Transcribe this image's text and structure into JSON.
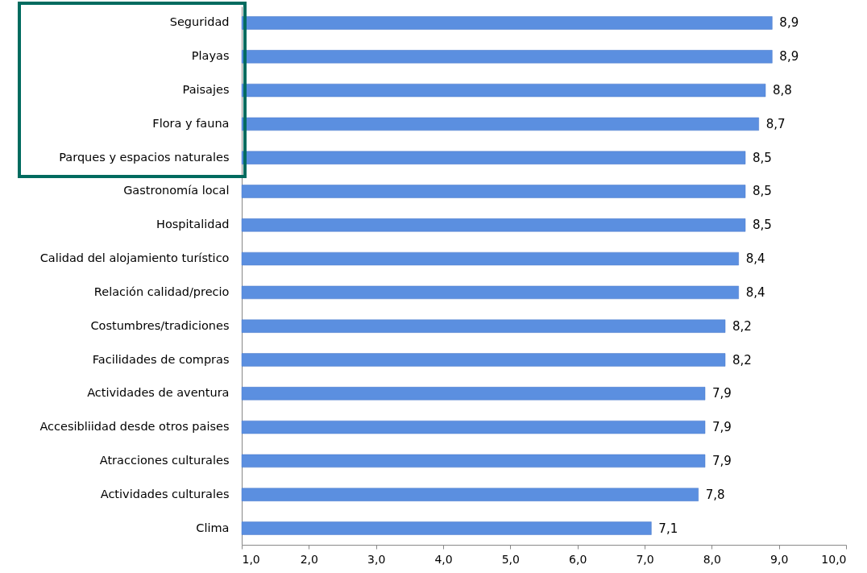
{
  "chart_data": {
    "type": "bar",
    "orientation": "horizontal",
    "categories": [
      "Seguridad",
      "Playas",
      "Paisajes",
      "Flora y fauna",
      "Parques y espacios naturales",
      "Gastronomía local",
      "Hospitalidad",
      "Calidad del alojamiento turístico",
      "Relación calidad/precio",
      "Costumbres/tradiciones",
      "Facilidades de compras",
      "Actividades de aventura",
      "Accesibliidad desde otros paises",
      "Atracciones culturales",
      "Actividades culturales",
      "Clima"
    ],
    "values": [
      8.9,
      8.9,
      8.8,
      8.7,
      8.5,
      8.5,
      8.5,
      8.4,
      8.4,
      8.2,
      8.2,
      7.9,
      7.9,
      7.9,
      7.8,
      7.1
    ],
    "value_labels": [
      "8,9",
      "8,9",
      "8,8",
      "8,7",
      "8,5",
      "8,5",
      "8,5",
      "8,4",
      "8,4",
      "8,2",
      "8,2",
      "7,9",
      "7,9",
      "7,9",
      "7,8",
      "7,1"
    ],
    "color": "#5b8fe0",
    "xlim": [
      1,
      10
    ],
    "xticks": [
      {
        "value": 1,
        "label": "1,0"
      },
      {
        "value": 2,
        "label": "2,0"
      },
      {
        "value": 3,
        "label": "3,0"
      },
      {
        "value": 4,
        "label": "4,0"
      },
      {
        "value": 5,
        "label": "5,0"
      },
      {
        "value": 6,
        "label": "6,0"
      },
      {
        "value": 7,
        "label": "7,0"
      },
      {
        "value": 8,
        "label": "8,0"
      },
      {
        "value": 9,
        "label": "9,0"
      },
      {
        "value": 10,
        "label": "10,0"
      }
    ],
    "grid": false
  }
}
